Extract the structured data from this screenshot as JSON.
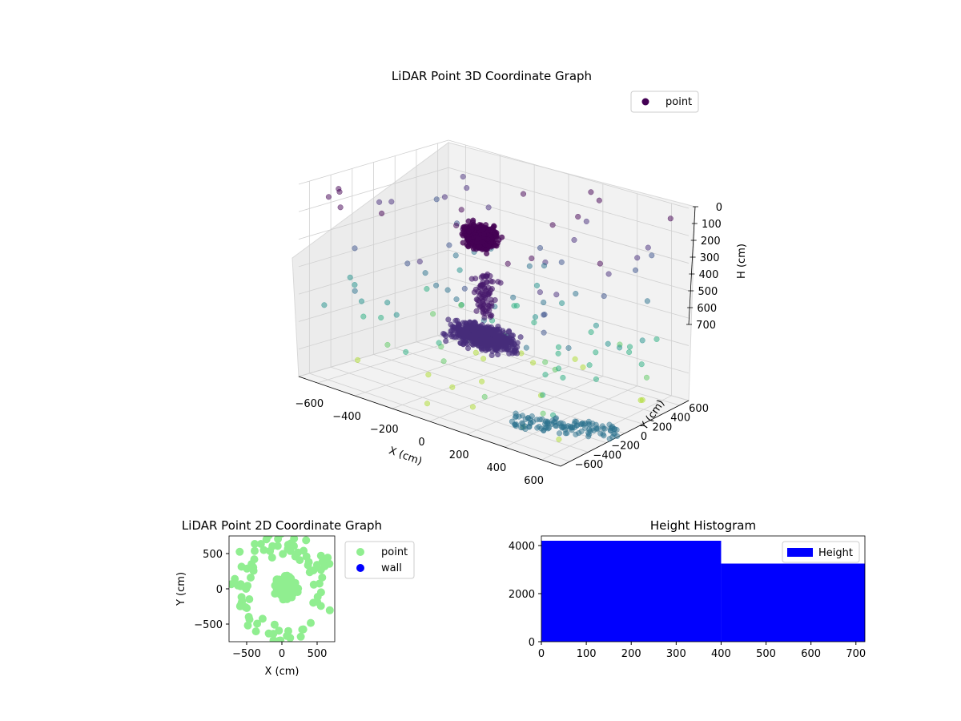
{
  "chart_data": [
    {
      "type": "scatter3d",
      "title": "LiDAR Point 3D Coordinate Graph",
      "xlabel": "X (cm)",
      "ylabel": "Y (cm)",
      "zlabel": "H (cm)",
      "xlim": [
        -700,
        700
      ],
      "ylim": [
        -700,
        700
      ],
      "zlim": [
        700,
        0
      ],
      "x_ticks": [
        "−600",
        "−400",
        "−200",
        "0",
        "200",
        "400",
        "600"
      ],
      "y_ticks": [
        "−600",
        "−400",
        "−200",
        "0",
        "200",
        "400",
        "600"
      ],
      "z_ticks": [
        "0",
        "100",
        "200",
        "300",
        "400",
        "500",
        "600",
        "700"
      ],
      "legend": [
        "point"
      ],
      "legend_position": "upper right",
      "grid": true,
      "colormap": "viridis",
      "clusters": [
        {
          "x": [
            -250,
            0
          ],
          "y": [
            -150,
            200
          ],
          "h": [
            80,
            250
          ],
          "color": "#440154"
        },
        {
          "x": [
            -250,
            250
          ],
          "y": [
            -350,
            150
          ],
          "h": [
            420,
            560
          ],
          "color": "#472d7b"
        }
      ]
    },
    {
      "type": "scatter",
      "title": "LiDAR Point 2D Coordinate Graph",
      "xlabel": "X (cm)",
      "ylabel": "Y (cm)",
      "xlim": [
        -750,
        750
      ],
      "ylim": [
        -750,
        750
      ],
      "x_ticks": [
        "−500",
        "0",
        "500"
      ],
      "y_ticks": [
        "−500",
        "0",
        "500"
      ],
      "series": [
        {
          "name": "point",
          "color": "#90ee90",
          "description_shape": "dense blob near origin with scattered ring"
        },
        {
          "name": "wall",
          "color": "#0000ff"
        }
      ],
      "legend_position": "outside right"
    },
    {
      "type": "histogram",
      "title": "Height Histogram",
      "xlim": [
        0,
        720
      ],
      "ylim": [
        0,
        4400
      ],
      "x_ticks": [
        "0",
        "100",
        "200",
        "300",
        "400",
        "500",
        "600",
        "700"
      ],
      "y_ticks": [
        "0",
        "2000",
        "4000"
      ],
      "bins": [
        [
          0,
          400
        ],
        [
          400,
          720
        ]
      ],
      "counts": [
        4200,
        3250
      ],
      "series": [
        {
          "name": "Height",
          "color": "#0000ff"
        }
      ],
      "legend_position": "upper right"
    }
  ]
}
